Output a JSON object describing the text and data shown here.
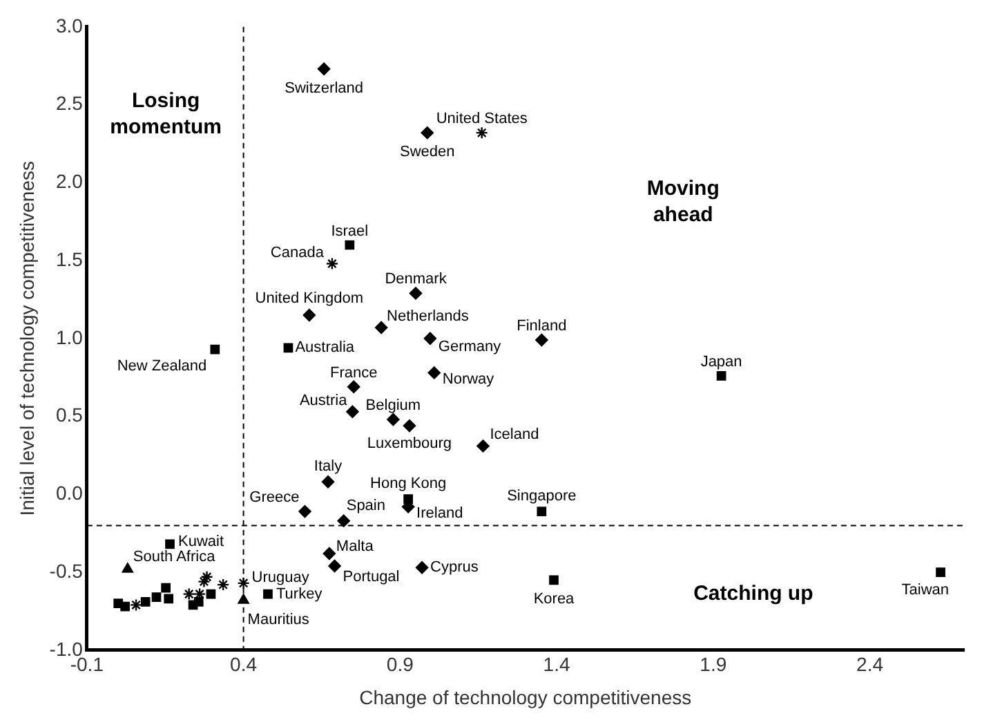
{
  "chart_data": {
    "type": "scatter",
    "xlabel": "Change of technology competitiveness",
    "ylabel": "Initial level of technology competitiveness",
    "xlim": [
      -0.1,
      2.7
    ],
    "xticks": [
      -0.1,
      0.4,
      0.9,
      1.4,
      1.9,
      2.4
    ],
    "ylim": [
      -1,
      3
    ],
    "yticks": [
      {
        "value": -1,
        "label": "-1.0"
      },
      -0.5,
      {
        "value": 0,
        "label": "0.0"
      },
      0.5,
      {
        "value": 1,
        "label": "1.0"
      },
      1.5,
      {
        "value": 2,
        "label": "2.0"
      },
      2.5,
      {
        "value": 3,
        "label": "3.0"
      }
    ],
    "grid": false,
    "legend": false,
    "series": [
      {
        "marker": "diamond",
        "color": "#000000",
        "x": [
          0.657,
          0.987,
          0.95,
          0.61,
          0.84,
          0.996,
          1.352,
          1.009,
          0.752,
          0.748,
          0.878,
          0.93,
          1.165,
          0.67,
          0.596,
          0.72,
          0.926,
          0.674,
          0.691,
          0.97
        ],
        "values": [
          2.73,
          2.32,
          1.29,
          1.15,
          1.07,
          1.0,
          0.99,
          0.78,
          0.69,
          0.53,
          0.48,
          0.44,
          0.31,
          0.08,
          -0.11,
          -0.17,
          -0.08,
          -0.38,
          -0.46,
          -0.47
        ]
      },
      {
        "marker": "square",
        "color": "#000000",
        "x": [
          0.739,
          0.309,
          0.543,
          1.926,
          0.926,
          1.352,
          1.391,
          2.626,
          0.165,
          0.478,
          0.152,
          0.161,
          0.239,
          0.257,
          0.296,
          0.0,
          0.022,
          0.087,
          0.122
        ],
        "values": [
          1.6,
          0.93,
          0.94,
          0.76,
          -0.03,
          -0.11,
          -0.55,
          -0.5,
          -0.32,
          -0.64,
          -0.6,
          -0.67,
          -0.71,
          -0.69,
          -0.64,
          -0.7,
          -0.72,
          -0.69,
          -0.66
        ]
      },
      {
        "marker": "cross",
        "color": "#000000",
        "x": [
          1.161,
          0.683,
          0.4,
          0.283,
          0.274,
          0.335,
          0.226,
          0.26,
          0.057
        ],
        "values": [
          2.32,
          1.48,
          -0.57,
          -0.53,
          -0.56,
          -0.58,
          -0.64,
          -0.64,
          -0.71
        ]
      },
      {
        "marker": "triangle",
        "color": "#000000",
        "x": [
          0.03,
          0.4
        ],
        "values": [
          -0.48,
          -0.68
        ]
      }
    ],
    "ref_lines": [
      {
        "axis": "x",
        "value": 0.4,
        "line_style": "dashed"
      },
      {
        "axis": "y",
        "value": -0.2,
        "line_style": "dashed"
      }
    ],
    "annotations": [
      {
        "text": "Switzerland",
        "x": 0.657,
        "y": 2.73
      },
      {
        "text": "Sweden",
        "x": 0.987,
        "y": 2.32
      },
      {
        "text": "United States",
        "x": 1.161,
        "y": 2.32
      },
      {
        "text": "Canada",
        "x": 0.683,
        "y": 1.48
      },
      {
        "text": "Israel",
        "x": 0.739,
        "y": 1.6
      },
      {
        "text": "Denmark",
        "x": 0.95,
        "y": 1.29
      },
      {
        "text": "United Kingdom",
        "x": 0.61,
        "y": 1.15
      },
      {
        "text": "Netherlands",
        "x": 0.84,
        "y": 1.07
      },
      {
        "text": "Germany",
        "x": 0.996,
        "y": 1.0
      },
      {
        "text": "Finland",
        "x": 1.352,
        "y": 0.99
      },
      {
        "text": "Australia",
        "x": 0.543,
        "y": 0.94
      },
      {
        "text": "New Zealand",
        "x": 0.309,
        "y": 0.93
      },
      {
        "text": "Japan",
        "x": 1.926,
        "y": 0.76
      },
      {
        "text": "France",
        "x": 0.752,
        "y": 0.69
      },
      {
        "text": "Norway",
        "x": 1.009,
        "y": 0.78
      },
      {
        "text": "Austria",
        "x": 0.748,
        "y": 0.53
      },
      {
        "text": "Belgium",
        "x": 0.878,
        "y": 0.48
      },
      {
        "text": "Luxembourg",
        "x": 0.93,
        "y": 0.44
      },
      {
        "text": "Iceland",
        "x": 1.165,
        "y": 0.31
      },
      {
        "text": "Italy",
        "x": 0.67,
        "y": 0.08
      },
      {
        "text": "Greece",
        "x": 0.596,
        "y": -0.11
      },
      {
        "text": "Spain",
        "x": 0.72,
        "y": -0.17
      },
      {
        "text": "Hong Kong",
        "x": 0.926,
        "y": -0.03
      },
      {
        "text": "Ireland",
        "x": 0.926,
        "y": -0.08
      },
      {
        "text": "Singapore",
        "x": 1.352,
        "y": -0.11
      },
      {
        "text": "Malta",
        "x": 0.674,
        "y": -0.38
      },
      {
        "text": "Portugal",
        "x": 0.691,
        "y": -0.46
      },
      {
        "text": "Cyprus",
        "x": 0.97,
        "y": -0.47
      },
      {
        "text": "Korea",
        "x": 1.391,
        "y": -0.55
      },
      {
        "text": "Taiwan",
        "x": 2.626,
        "y": -0.5
      },
      {
        "text": "Kuwait",
        "x": 0.165,
        "y": -0.32
      },
      {
        "text": "South Africa",
        "x": 0.03,
        "y": -0.48
      },
      {
        "text": "Uruguay",
        "x": 0.4,
        "y": -0.57
      },
      {
        "text": "Turkey",
        "x": 0.478,
        "y": -0.64
      },
      {
        "text": "Mauritius",
        "x": 0.4,
        "y": -0.68
      },
      "Losing momentum",
      "Moving ahead",
      "Catching up"
    ]
  }
}
